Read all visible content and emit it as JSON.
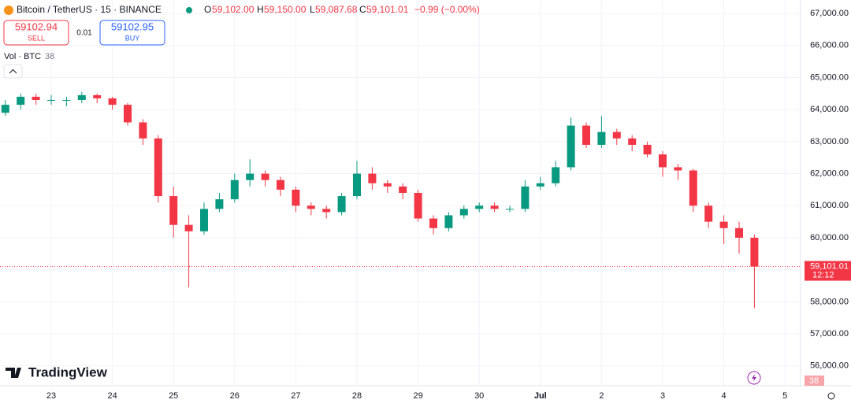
{
  "header": {
    "symbol": "Bitcoin / TetherUS · 15 · BINANCE",
    "o_label": "O",
    "o": "59,102.00",
    "h_label": "H",
    "h": "59,150.00",
    "l_label": "L",
    "l": "59,087.68",
    "c_label": "C",
    "c": "59,101.01",
    "change": "−0.99 (−0.00%)"
  },
  "trade": {
    "sell_price": "59102.94",
    "sell": "SELL",
    "quantity": "0.01",
    "buy_price": "59102.95",
    "buy": "BUY"
  },
  "volume": {
    "label": "Vol · BTC",
    "value": "38"
  },
  "logo": "TradingView",
  "chart_data": {
    "type": "candlestick",
    "categories": [
      null,
      null,
      null,
      "23",
      null,
      null,
      null,
      "24",
      null,
      null,
      null,
      "25",
      null,
      null,
      null,
      "26",
      null,
      null,
      null,
      "27",
      null,
      null,
      null,
      "28",
      null,
      null,
      null,
      "29",
      null,
      null,
      null,
      "30",
      null,
      null,
      null,
      "Jul",
      null,
      null,
      null,
      "2",
      null,
      null,
      null,
      "3",
      null,
      null,
      null,
      "4",
      null,
      null,
      null,
      "5"
    ],
    "open": [
      63900,
      64150,
      64400,
      64300,
      64300,
      64300,
      64450,
      64350,
      64150,
      63600,
      63100,
      61300,
      60400,
      60200,
      60900,
      61200,
      61800,
      62000,
      61800,
      61500,
      61000,
      60900,
      60800,
      61300,
      62000,
      61700,
      61600,
      61400,
      60600,
      60300,
      60700,
      60900,
      61000,
      60900,
      60900,
      61600,
      61700,
      62200,
      63500,
      62900,
      63300,
      63100,
      62900,
      62600,
      62200,
      62100,
      61000,
      60500,
      60300,
      60000,
      null,
      null
    ],
    "high": [
      64300,
      64500,
      64500,
      64450,
      64400,
      64550,
      64500,
      64400,
      64200,
      63700,
      63200,
      61600,
      60700,
      61100,
      61400,
      62000,
      62450,
      62100,
      61900,
      61600,
      61100,
      61000,
      61400,
      62400,
      62200,
      61800,
      61700,
      61500,
      60700,
      60800,
      61000,
      61100,
      61100,
      61000,
      61800,
      61900,
      62400,
      63750,
      63600,
      63800,
      63400,
      63200,
      63000,
      62700,
      62300,
      62150,
      61100,
      60700,
      60500,
      60100,
      null,
      null
    ],
    "low": [
      63800,
      64000,
      64150,
      64150,
      64100,
      64200,
      64200,
      64000,
      63500,
      62900,
      61100,
      60000,
      58450,
      60100,
      60800,
      61100,
      61600,
      61600,
      61300,
      60800,
      60700,
      60600,
      60700,
      61200,
      61500,
      61400,
      61200,
      60500,
      60100,
      60200,
      60600,
      60800,
      60800,
      60800,
      60800,
      61500,
      61600,
      62100,
      62800,
      62800,
      62900,
      62700,
      62500,
      61900,
      61800,
      60800,
      60300,
      59800,
      59500,
      57800,
      null,
      null
    ],
    "close": [
      64150,
      64400,
      64300,
      64300,
      64300,
      64450,
      64350,
      64150,
      63600,
      63100,
      61300,
      60400,
      60200,
      60900,
      61200,
      61800,
      62000,
      61800,
      61500,
      61000,
      60900,
      60800,
      61300,
      62000,
      61700,
      61600,
      61400,
      60600,
      60300,
      60700,
      60900,
      61000,
      60900,
      60900,
      61600,
      61700,
      62200,
      63500,
      62900,
      63300,
      63100,
      62900,
      62600,
      62200,
      62100,
      61000,
      60500,
      60300,
      60000,
      59101.01,
      null,
      null
    ],
    "up_color": "#089981",
    "down_color": "#f23645",
    "ylim": [
      55380,
      67420
    ],
    "yticks": [
      {
        "value": 56000,
        "label": "56,000.00"
      },
      {
        "value": 57000,
        "label": "57,000.00"
      },
      {
        "value": 58000,
        "label": "58,000.00"
      },
      {
        "value": 59000,
        "label": "59,000.00"
      },
      {
        "value": 60000,
        "label": "60,000.00"
      },
      {
        "value": 61000,
        "label": "61,000.00"
      },
      {
        "value": 62000,
        "label": "62,000.00"
      },
      {
        "value": 63000,
        "label": "63,000.00"
      },
      {
        "value": 64000,
        "label": "64,000.00"
      },
      {
        "value": 65000,
        "label": "65,000.00"
      },
      {
        "value": 66000,
        "label": "66,000.00"
      },
      {
        "value": 67000,
        "label": "67,000.00"
      }
    ],
    "grid": true,
    "last_price": {
      "value": 59101.01,
      "label": "59,101.01"
    },
    "countdown": "12:12"
  }
}
